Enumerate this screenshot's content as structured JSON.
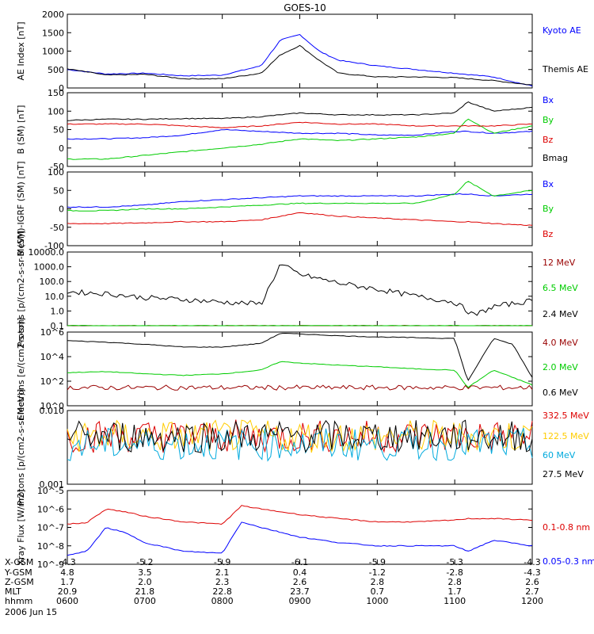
{
  "title": "GOES-10",
  "x_tick_labels": [
    "0600",
    "0700",
    "0800",
    "0900",
    "1000",
    "1100",
    "1200"
  ],
  "colors": {
    "black": "#000000",
    "blue": "#0000ff",
    "red": "#dd0000",
    "darkred": "#990000",
    "green": "#00cc00",
    "orange": "#ffcc00",
    "cyan": "#00aadd"
  },
  "ephemeris": {
    "rows": [
      {
        "label": "X-GSM",
        "values": [
          "-4.3",
          "-5.2",
          "-5.9",
          "-6.1",
          "-5.9",
          "-5.3",
          "-4.3"
        ]
      },
      {
        "label": "Y-GSM",
        "values": [
          "4.8",
          "3.5",
          "2.1",
          "0.4",
          "-1.2",
          "-2.8",
          "-4.3"
        ]
      },
      {
        "label": "Z-GSM",
        "values": [
          "1.7",
          "2.0",
          "2.3",
          "2.6",
          "2.8",
          "2.8",
          "2.6"
        ]
      },
      {
        "label": "MLT",
        "values": [
          "20.9",
          "21.8",
          "22.8",
          "23.7",
          "0.7",
          "1.7",
          "2.7"
        ]
      },
      {
        "label": "hhmm",
        "values": [
          "0600",
          "0700",
          "0800",
          "0900",
          "1000",
          "1100",
          "1200"
        ]
      }
    ],
    "date": "2006 Jun 15"
  },
  "chart_data": [
    {
      "type": "line",
      "ylabel": "AE Index [nT]",
      "ylim": [
        0,
        2000
      ],
      "yscale": "linear",
      "yticks": [
        "0",
        "500",
        "1000",
        "1500",
        "2000"
      ],
      "x": [
        "0600",
        "0630",
        "0700",
        "0730",
        "0800",
        "0830",
        "0845",
        "0900",
        "0915",
        "0930",
        "1000",
        "1030",
        "1100",
        "1130",
        "1200"
      ],
      "series": [
        {
          "name": "Kyoto AE",
          "color": "blue",
          "values": [
            500,
            380,
            400,
            330,
            350,
            600,
            1300,
            1450,
            1000,
            750,
            600,
            500,
            400,
            300,
            50
          ]
        },
        {
          "name": "Themis AE",
          "color": "black",
          "values": [
            520,
            350,
            370,
            250,
            250,
            400,
            900,
            1150,
            750,
            400,
            300,
            300,
            280,
            200,
            80
          ]
        }
      ]
    },
    {
      "type": "line",
      "ylabel": "B (SM) [nT]",
      "ylim": [
        -50,
        150
      ],
      "yscale": "linear",
      "yticks": [
        "-50",
        "0",
        "50",
        "100",
        "150"
      ],
      "x": [
        "0600",
        "0630",
        "0700",
        "0730",
        "0800",
        "0830",
        "0900",
        "0930",
        "1000",
        "1030",
        "1100",
        "1110",
        "1130",
        "1200"
      ],
      "series": [
        {
          "name": "Bx",
          "color": "blue",
          "values": [
            25,
            25,
            28,
            35,
            50,
            45,
            40,
            40,
            35,
            35,
            45,
            45,
            40,
            45
          ]
        },
        {
          "name": "By",
          "color": "green",
          "values": [
            -30,
            -30,
            -20,
            -10,
            0,
            10,
            25,
            20,
            25,
            30,
            40,
            80,
            40,
            60
          ]
        },
        {
          "name": "Bz",
          "color": "red",
          "values": [
            65,
            65,
            65,
            60,
            55,
            60,
            70,
            65,
            65,
            60,
            60,
            60,
            60,
            65
          ]
        },
        {
          "name": "Bmag",
          "color": "black",
          "values": [
            75,
            78,
            78,
            80,
            80,
            85,
            95,
            90,
            90,
            90,
            95,
            125,
            100,
            110
          ]
        }
      ]
    },
    {
      "type": "line",
      "ylabel": "B (SM)-IGRF (SM) [nT]",
      "ylim": [
        -100,
        100
      ],
      "yscale": "linear",
      "yticks": [
        "-100",
        "-50",
        "0",
        "50",
        "100"
      ],
      "x": [
        "0600",
        "0630",
        "0700",
        "0730",
        "0800",
        "0830",
        "0900",
        "0930",
        "1000",
        "1030",
        "1100",
        "1110",
        "1130",
        "1200"
      ],
      "series": [
        {
          "name": "Bx",
          "color": "blue",
          "values": [
            5,
            5,
            10,
            20,
            25,
            30,
            35,
            35,
            35,
            35,
            40,
            40,
            35,
            40
          ]
        },
        {
          "name": "By",
          "color": "green",
          "values": [
            -5,
            -5,
            0,
            0,
            5,
            10,
            15,
            15,
            15,
            15,
            40,
            75,
            35,
            50
          ]
        },
        {
          "name": "Bz",
          "color": "red",
          "values": [
            -40,
            -40,
            -38,
            -35,
            -35,
            -30,
            -10,
            -20,
            -25,
            -30,
            -35,
            -35,
            -40,
            -45
          ]
        }
      ]
    },
    {
      "type": "line",
      "ylabel": "Protons [p/(cm2-s-sr-MeV)]",
      "ylim": [
        0.1,
        10000
      ],
      "yscale": "log",
      "yticks": [
        "0.1",
        "1.0",
        "10.0",
        "100.0",
        "1000.0",
        "10000.0"
      ],
      "x": [
        "0600",
        "0630",
        "0700",
        "0730",
        "0800",
        "0830",
        "0845",
        "0900",
        "0930",
        "1000",
        "1030",
        "1100",
        "1115",
        "1130",
        "1200"
      ],
      "series": [
        {
          "name": "12 MeV",
          "color": "darkred",
          "values": [
            0.1,
            0.1,
            0.1,
            0.1,
            0.1,
            0.1,
            0.1,
            0.1,
            0.1,
            0.1,
            0.1,
            0.1,
            0.1,
            0.1,
            0.1
          ]
        },
        {
          "name": "6.5 MeV",
          "color": "green",
          "values": [
            0.1,
            0.1,
            0.1,
            0.1,
            0.1,
            0.1,
            0.1,
            0.1,
            0.1,
            0.1,
            0.1,
            0.1,
            0.1,
            0.1,
            0.1
          ]
        },
        {
          "name": "2.4 MeV",
          "color": "black",
          "values": [
            20,
            15,
            8,
            6,
            4,
            3,
            1500,
            300,
            80,
            30,
            10,
            4,
            0.5,
            2,
            5
          ]
        }
      ]
    },
    {
      "type": "line",
      "ylabel": "Electrons [e/(cm2-s-sr)]",
      "ylim": [
        1,
        1000000
      ],
      "yscale": "log",
      "yticks": [
        "10^0",
        "10^2",
        "10^4",
        "10^6"
      ],
      "x": [
        "0600",
        "0630",
        "0700",
        "0730",
        "0800",
        "0830",
        "0845",
        "0900",
        "0930",
        "1000",
        "1030",
        "1100",
        "1110",
        "1130",
        "1145",
        "1200"
      ],
      "series": [
        {
          "name": "4.0 MeV",
          "color": "darkred",
          "values": [
            30,
            30,
            30,
            30,
            30,
            30,
            30,
            30,
            30,
            30,
            30,
            30,
            30,
            30,
            30,
            30
          ]
        },
        {
          "name": "2.0 MeV",
          "color": "green",
          "values": [
            500,
            600,
            400,
            300,
            400,
            800,
            4000,
            3000,
            2000,
            1500,
            1000,
            800,
            30,
            800,
            200,
            50
          ]
        },
        {
          "name": "0.6 MeV",
          "color": "black",
          "values": [
            200000,
            150000,
            100000,
            60000,
            60000,
            120000,
            800000,
            700000,
            500000,
            400000,
            350000,
            300000,
            100,
            300000,
            100000,
            200
          ]
        }
      ]
    },
    {
      "type": "line",
      "ylabel": "Protons [p/(cm2-s-sr-MeV)]",
      "ylim": [
        0.001,
        0.1
      ],
      "yscale": "log",
      "yticks": [
        "0.001",
        "0.010"
      ],
      "x": [
        "0600",
        "0630",
        "0700",
        "0730",
        "0800",
        "0830",
        "0900",
        "0930",
        "1000",
        "1030",
        "1100",
        "1130",
        "1200"
      ],
      "series": [
        {
          "name": "332.5 MeV",
          "color": "red",
          "values": [
            0.02,
            0.02,
            0.02,
            0.02,
            0.02,
            0.02,
            0.02,
            0.02,
            0.02,
            0.02,
            0.02,
            0.02,
            0.02
          ]
        },
        {
          "name": "122.5 MeV",
          "color": "orange",
          "values": [
            0.02,
            0.02,
            0.02,
            0.02,
            0.02,
            0.02,
            0.02,
            0.02,
            0.02,
            0.02,
            0.02,
            0.02,
            0.02
          ]
        },
        {
          "name": "60 MeV",
          "color": "cyan",
          "values": [
            0.012,
            0.012,
            0.012,
            0.012,
            0.012,
            0.012,
            0.012,
            0.012,
            0.012,
            0.012,
            0.012,
            0.012,
            0.012
          ]
        },
        {
          "name": "27.5 MeV",
          "color": "black",
          "values": [
            0.02,
            0.02,
            0.02,
            0.02,
            0.02,
            0.02,
            0.02,
            0.02,
            0.02,
            0.02,
            0.02,
            0.02,
            0.02
          ]
        }
      ]
    },
    {
      "type": "line",
      "ylabel": "Xray Flux [W/m2]",
      "ylim": [
        1e-09,
        1e-05
      ],
      "yscale": "log",
      "yticks": [
        "10^-9",
        "10^-8",
        "10^-7",
        "10^-6",
        "10^-5"
      ],
      "x": [
        "0600",
        "0615",
        "0630",
        "0645",
        "0700",
        "0730",
        "0800",
        "0815",
        "0830",
        "0900",
        "0930",
        "1000",
        "1030",
        "1100",
        "1110",
        "1130",
        "1200"
      ],
      "series": [
        {
          "name": "0.1-0.8 nm",
          "color": "red",
          "values": [
            1.5e-07,
            1.8e-07,
            1e-06,
            7e-07,
            4e-07,
            2e-07,
            1.5e-07,
            1.5e-06,
            1e-06,
            5e-07,
            3e-07,
            2e-07,
            2e-07,
            2.5e-07,
            3e-07,
            3e-07,
            2.5e-07
          ]
        },
        {
          "name": "0.05-0.3 nm",
          "color": "blue",
          "values": [
            3e-09,
            5e-09,
            1e-07,
            5e-08,
            1.5e-08,
            5e-09,
            4e-09,
            2e-07,
            1e-07,
            3e-08,
            1.5e-08,
            1e-08,
            1e-08,
            1e-08,
            5e-09,
            2e-08,
            1e-08
          ]
        }
      ]
    }
  ]
}
